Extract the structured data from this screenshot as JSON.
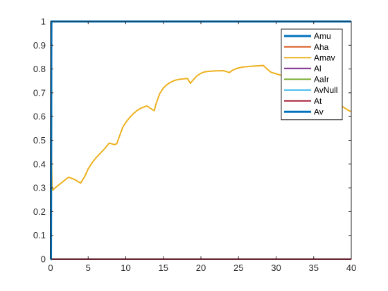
{
  "chart_data": {
    "type": "line",
    "title": "",
    "xlabel": "",
    "ylabel": "",
    "xlim": [
      0,
      40
    ],
    "ylim": [
      0,
      1
    ],
    "xticks": [
      "0",
      "5",
      "10",
      "15",
      "20",
      "25",
      "30",
      "35",
      "40"
    ],
    "yticks": [
      "0",
      "0.1",
      "0.2",
      "0.3",
      "0.4",
      "0.5",
      "0.6",
      "0.7",
      "0.8",
      "0.9",
      "1"
    ],
    "grid": false,
    "legend_position": "top-right",
    "series": [
      {
        "name": "Amu",
        "color": "#0072BD",
        "width": 3,
        "x": [
          0,
          0.05,
          0.1,
          40
        ],
        "y": [
          0,
          0,
          1,
          1
        ]
      },
      {
        "name": "Aha",
        "color": "#D95319",
        "width": 2,
        "x": [
          0,
          40
        ],
        "y": [
          0,
          0
        ]
      },
      {
        "name": "Amav",
        "color": "#EDB120",
        "width": 2,
        "x": [
          0.1,
          0.2,
          0.3,
          0.6,
          1.2,
          2.4,
          3.2,
          4.0,
          4.5,
          5.0,
          5.5,
          6.0,
          6.6,
          7.2,
          7.8,
          8.5,
          8.8,
          9.2,
          9.6,
          10.0,
          10.5,
          11.0,
          11.5,
          12.0,
          12.8,
          13.5,
          13.8,
          14.0,
          14.5,
          15.0,
          15.5,
          16.0,
          16.5,
          17.0,
          17.5,
          18.2,
          18.6,
          19.0,
          19.5,
          20.0,
          20.5,
          21.0,
          22.0,
          23.0,
          23.5,
          23.8,
          24.2,
          24.8,
          25.5,
          26.5,
          27.5,
          28.3,
          28.8,
          29.3,
          30.0,
          30.5,
          31.0,
          31.5,
          32.0,
          32.5,
          33.0,
          34.0,
          35.0,
          36.0,
          37.0,
          38.0,
          38.7,
          39.5,
          40.0
        ],
        "y": [
          0.45,
          0.3,
          0.29,
          0.3,
          0.315,
          0.345,
          0.335,
          0.32,
          0.345,
          0.38,
          0.405,
          0.425,
          0.445,
          0.465,
          0.488,
          0.482,
          0.485,
          0.52,
          0.555,
          0.575,
          0.595,
          0.612,
          0.625,
          0.635,
          0.645,
          0.63,
          0.625,
          0.65,
          0.695,
          0.72,
          0.735,
          0.745,
          0.752,
          0.756,
          0.758,
          0.76,
          0.74,
          0.755,
          0.772,
          0.782,
          0.788,
          0.79,
          0.792,
          0.793,
          0.788,
          0.785,
          0.795,
          0.803,
          0.808,
          0.811,
          0.813,
          0.815,
          0.8,
          0.787,
          0.78,
          0.775,
          0.77,
          0.765,
          0.76,
          0.755,
          0.75,
          0.735,
          0.715,
          0.695,
          0.675,
          0.655,
          0.645,
          0.628,
          0.62
        ]
      },
      {
        "name": "Al",
        "color": "#7E2F8E",
        "width": 2,
        "x": [
          0,
          40
        ],
        "y": [
          0,
          0
        ]
      },
      {
        "name": "AaIr",
        "color": "#77AC30",
        "width": 2,
        "x": [
          0,
          40
        ],
        "y": [
          0,
          0
        ]
      },
      {
        "name": "AvNull",
        "color": "#4DBEEE",
        "width": 2,
        "x": [
          0,
          40
        ],
        "y": [
          0,
          0
        ]
      },
      {
        "name": "At",
        "color": "#A2142F",
        "width": 2,
        "x": [
          0,
          40
        ],
        "y": [
          0,
          0
        ]
      },
      {
        "name": "Av",
        "color": "#0072BD",
        "width": 3,
        "x": [
          0,
          0.05,
          0.1,
          40
        ],
        "y": [
          0,
          0,
          1,
          1
        ]
      }
    ]
  }
}
